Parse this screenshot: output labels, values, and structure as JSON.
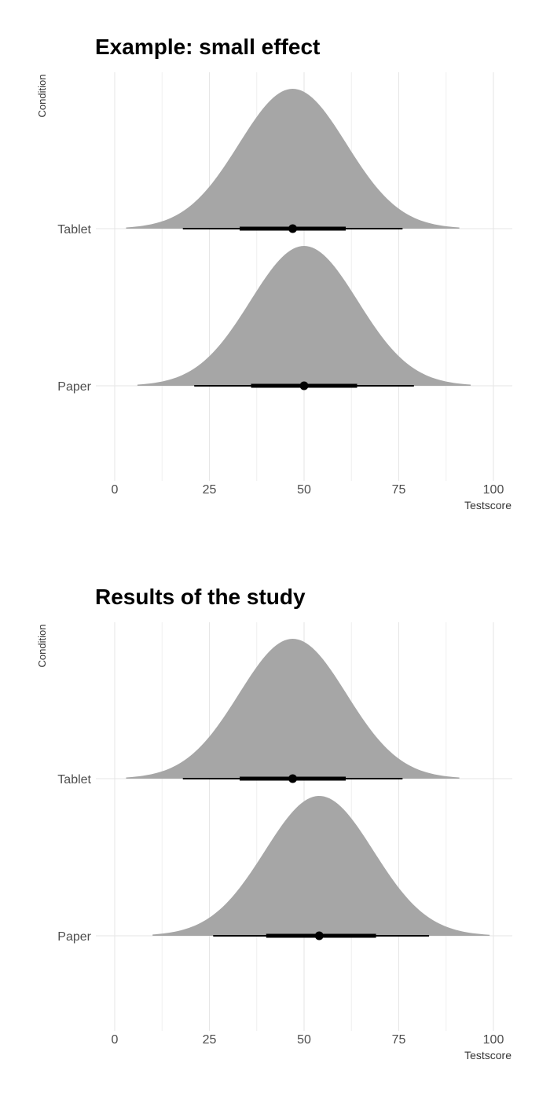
{
  "chart_data": [
    {
      "type": "density",
      "title": "Example: small effect",
      "xlabel": "Testscore",
      "ylabel": "Condition",
      "xlim": [
        0,
        100
      ],
      "x_ticks": [
        0,
        25,
        50,
        75,
        100
      ],
      "grid": true,
      "categories": [
        "Tablet",
        "Paper"
      ],
      "series": [
        {
          "name": "Tablet",
          "mean": 47,
          "range": [
            3,
            91
          ],
          "interval_95": [
            18,
            76
          ],
          "interval_66": [
            33,
            61
          ],
          "point": 47
        },
        {
          "name": "Paper",
          "mean": 50,
          "range": [
            6,
            94
          ],
          "interval_95": [
            21,
            79
          ],
          "interval_66": [
            36,
            64
          ],
          "point": 50
        }
      ],
      "fill_color": "#a6a6a6",
      "interval_color": "#000000"
    },
    {
      "type": "density",
      "title": "Results of the study",
      "xlabel": "Testscore",
      "ylabel": "Condition",
      "xlim": [
        0,
        100
      ],
      "x_ticks": [
        0,
        25,
        50,
        75,
        100
      ],
      "grid": true,
      "categories": [
        "Tablet",
        "Paper"
      ],
      "series": [
        {
          "name": "Tablet",
          "mean": 47,
          "range": [
            3,
            91
          ],
          "interval_95": [
            18,
            76
          ],
          "interval_66": [
            33,
            61
          ],
          "point": 47
        },
        {
          "name": "Paper",
          "mean": 54,
          "range": [
            10,
            99
          ],
          "interval_95": [
            26,
            83
          ],
          "interval_66": [
            40,
            69
          ],
          "point": 54
        }
      ],
      "fill_color": "#a6a6a6",
      "interval_color": "#000000"
    }
  ]
}
